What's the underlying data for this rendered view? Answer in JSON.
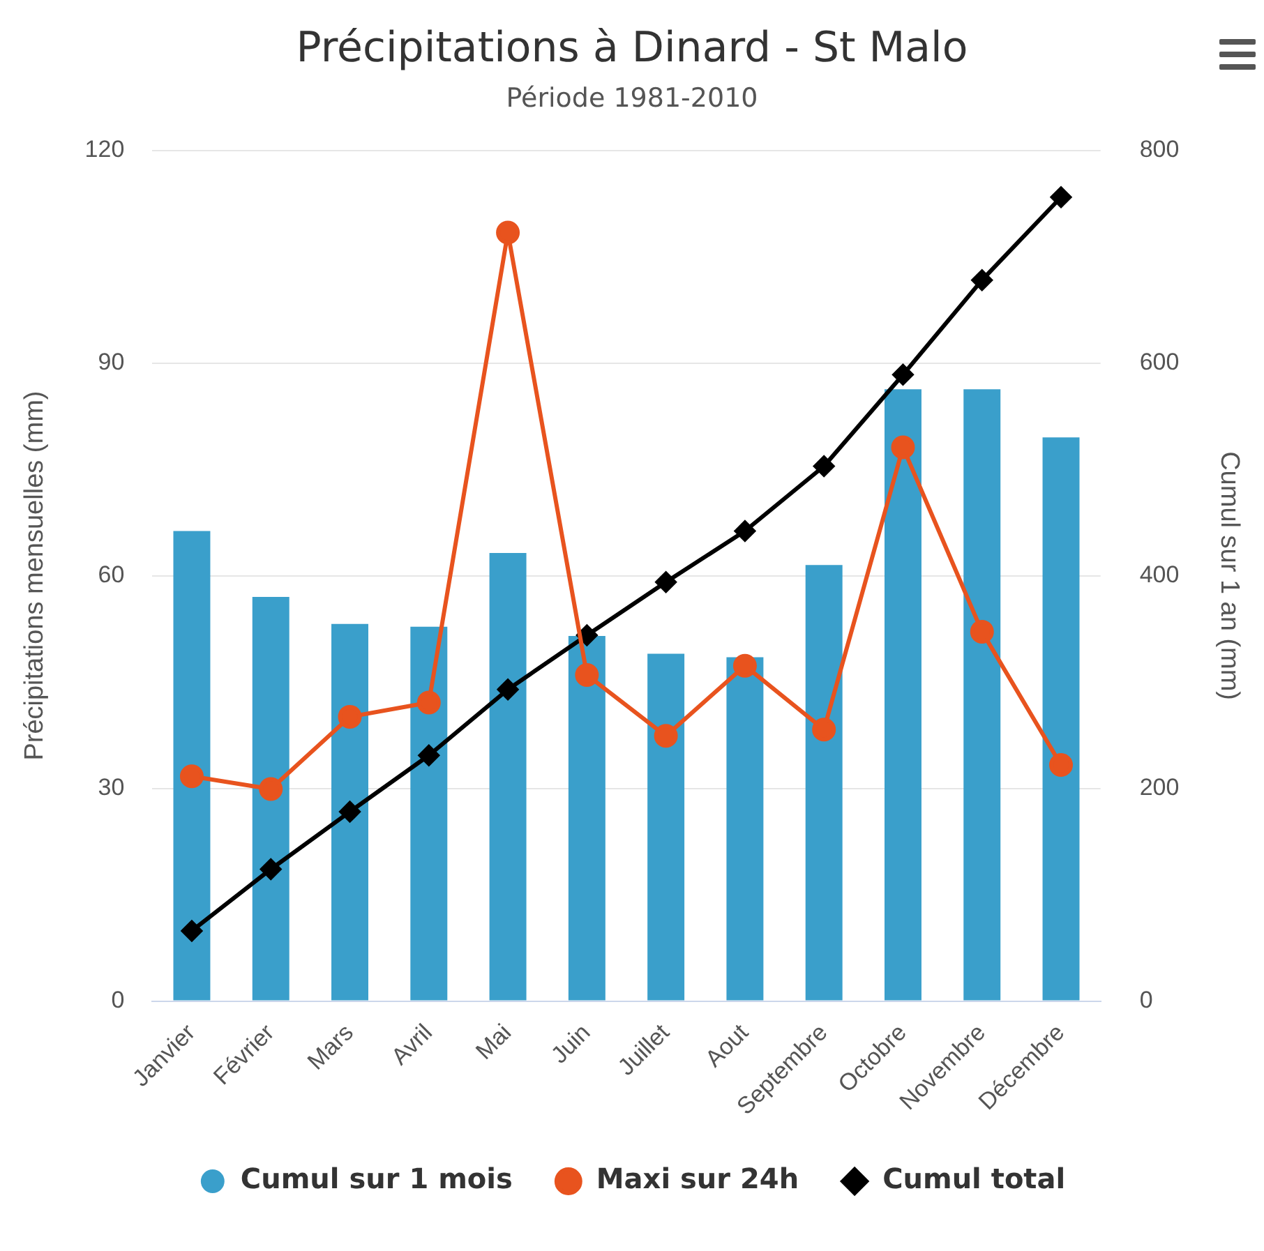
{
  "chart_data": {
    "type": "bar",
    "title": "Précipitations à Dinard - St Malo",
    "subtitle": "Période 1981-2010",
    "ylabel": "Précipitations mensuelles (mm)",
    "y2label": "Cumul sur 1 an (mm)",
    "categories": [
      "Janvier",
      "Février",
      "Mars",
      "Avril",
      "Mai",
      "Juin",
      "Juillet",
      "Aout",
      "Septembre",
      "Octobre",
      "Novembre",
      "Décembre"
    ],
    "series": [
      {
        "name": "Cumul sur 1 mois",
        "color": "#3a9fcb",
        "values": [
          66.3,
          57.0,
          53.2,
          52.8,
          63.2,
          51.5,
          49.0,
          48.5,
          61.5,
          86.3,
          86.3,
          79.5
        ]
      },
      {
        "name": "Maxi sur 24h",
        "type": "line",
        "color": "#e8531e",
        "marker": "circle",
        "values": [
          31.7,
          29.9,
          40.1,
          42.1,
          108.4,
          46.0,
          37.4,
          47.3,
          38.3,
          78.1,
          52.1,
          33.3
        ]
      },
      {
        "name": "Cumul total",
        "type": "line",
        "axis": "y2",
        "color": "#000000",
        "marker": "diamond",
        "values": [
          66,
          124,
          178,
          231,
          293,
          344,
          394,
          442,
          503,
          589,
          678,
          756
        ]
      }
    ],
    "ylim": [
      0,
      120
    ],
    "yticks": [
      0,
      30,
      60,
      90,
      120
    ],
    "y2lim": [
      0,
      800
    ],
    "y2ticks": [
      0,
      200,
      400,
      600,
      800
    ],
    "grid": "y",
    "legend": "bottom"
  }
}
